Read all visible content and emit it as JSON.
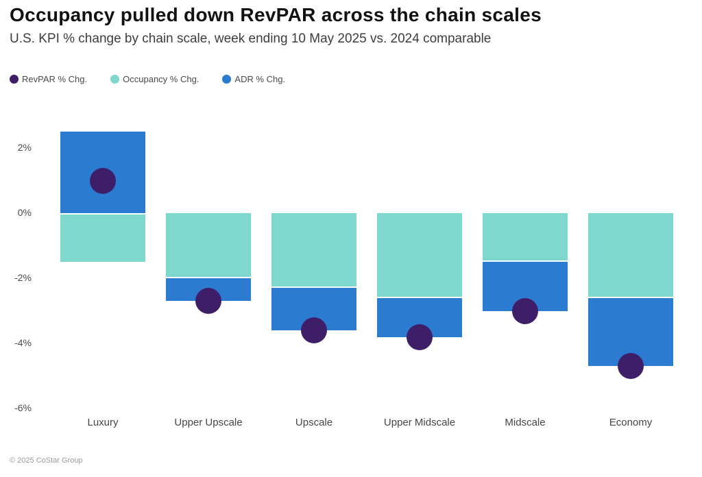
{
  "page": {
    "title": "Occupancy pulled down RevPAR across the chain scales",
    "subtitle": "U.S. KPI % change by chain scale, week ending 10 May 2025 vs. 2024 comparable",
    "footer": "© 2025 CoStar Group"
  },
  "colors": {
    "revpar": "#3F1E69",
    "occupancy": "#7ED8CE",
    "adr": "#2B7CD1",
    "title_text": "#121212",
    "axis_text": "#4A4A4A",
    "footer_text": "#9B9B9B"
  },
  "legend": {
    "items": [
      {
        "label": "RevPAR % Chg.",
        "color": "#3F1E69"
      },
      {
        "label": "Occupancy % Chg.",
        "color": "#7ED8CE"
      },
      {
        "label": "ADR % Chg.",
        "color": "#2B7CD1"
      }
    ]
  },
  "chart_data": {
    "type": "bar",
    "subtype": "sign-stacked bars with point overlay",
    "title": "Occupancy pulled down RevPAR across the chain scales",
    "subtitle": "U.S. KPI % change by chain scale, week ending 10 May 2025 vs. 2024 comparable",
    "xlabel": "",
    "ylabel": "",
    "categories": [
      "Luxury",
      "Upper Upscale",
      "Upscale",
      "Upper Midscale",
      "Midscale",
      "Economy"
    ],
    "series": [
      {
        "name": "Occupancy % Chg.",
        "render": "bar",
        "color": "#7ED8CE",
        "values": [
          -1.5,
          -2.0,
          -2.3,
          -2.6,
          -1.5,
          -2.6
        ]
      },
      {
        "name": "ADR % Chg.",
        "render": "bar",
        "color": "#2B7CD1",
        "values": [
          2.5,
          -0.7,
          -1.3,
          -1.2,
          -1.5,
          -2.1
        ]
      },
      {
        "name": "RevPAR % Chg.",
        "render": "point",
        "color": "#3F1E69",
        "values": [
          1.0,
          -2.7,
          -3.6,
          -3.8,
          -3.0,
          -4.7
        ]
      }
    ],
    "yticks": [
      2,
      0,
      -2,
      -4,
      -6
    ],
    "ytick_labels": [
      "2%",
      "0%",
      "-2%",
      "-4%",
      "-6%"
    ],
    "ylim": [
      -6.5,
      2.7
    ],
    "grid": false,
    "legend_position": "top-left"
  }
}
